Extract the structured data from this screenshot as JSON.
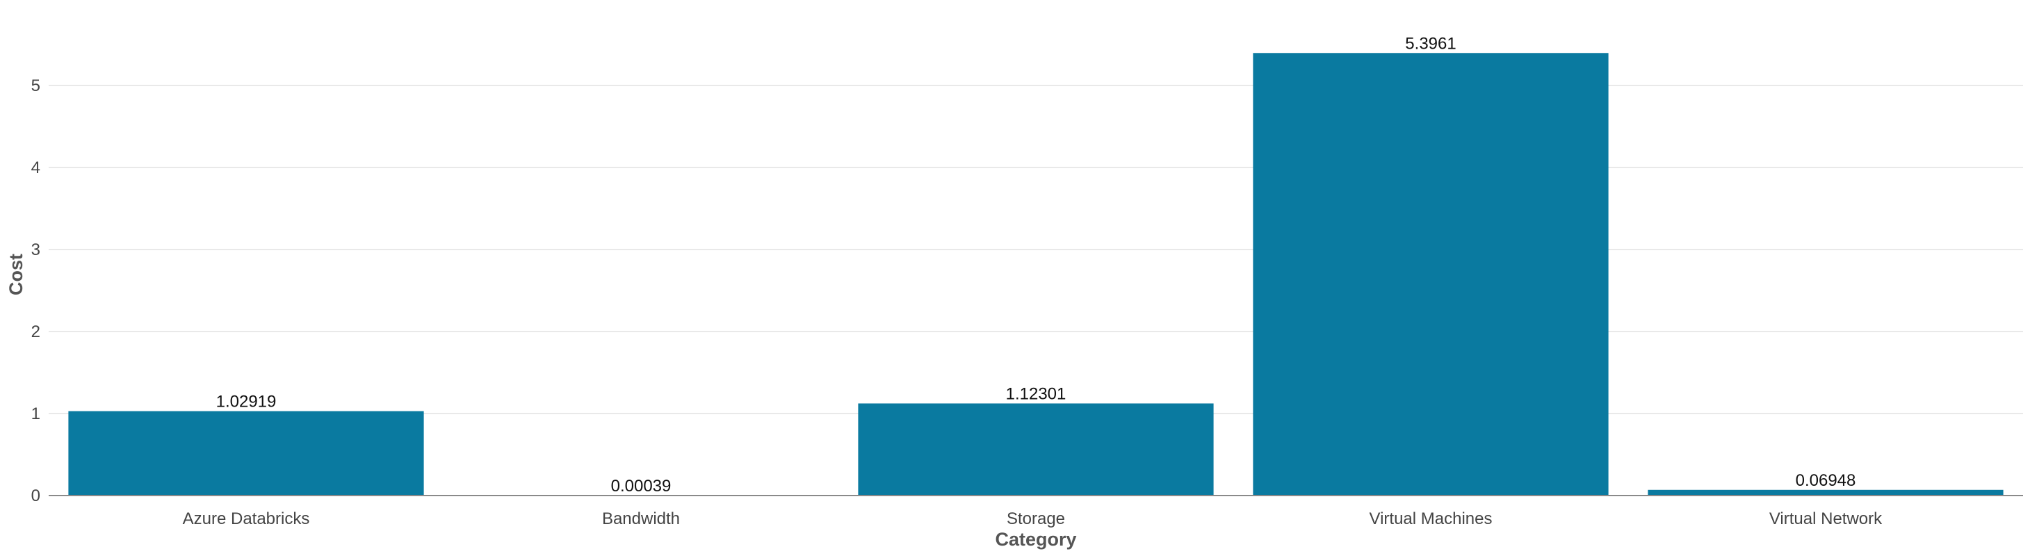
{
  "chart_data": {
    "type": "bar",
    "categories": [
      "Azure Databricks",
      "Bandwidth",
      "Storage",
      "Virtual Machines",
      "Virtual Network"
    ],
    "values": [
      1.02919,
      0.00039,
      1.12301,
      5.3961,
      0.06948
    ],
    "value_labels": [
      "1.02919",
      "0.00039",
      "1.12301",
      "5.3961",
      "0.06948"
    ],
    "title": "",
    "xlabel": "Category",
    "ylabel": "Cost",
    "ylim": [
      0,
      5.8
    ],
    "yticks": [
      0,
      1,
      2,
      3,
      4,
      5
    ],
    "grid": true,
    "legend": "none",
    "colors": {
      "bar": "#0a7aa0"
    }
  }
}
